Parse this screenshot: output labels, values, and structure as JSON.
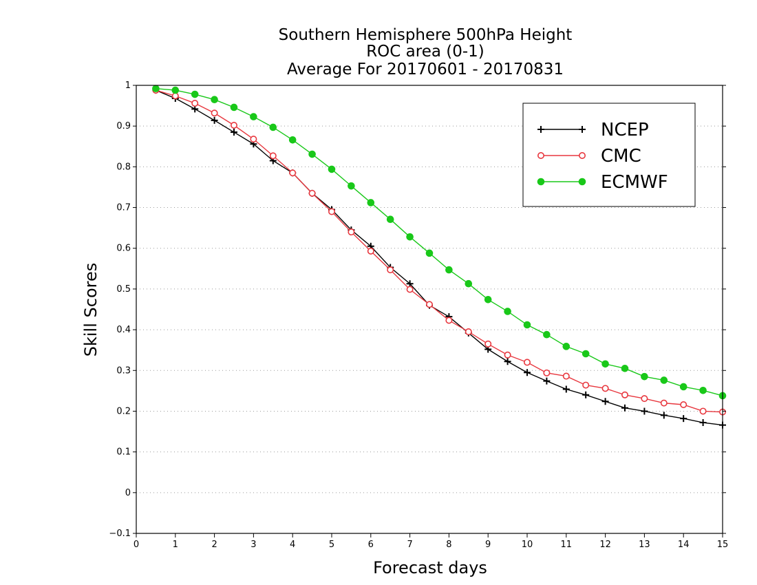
{
  "chart_data": {
    "type": "line",
    "title_lines": [
      "Southern Hemisphere 500hPa Height",
      "ROC area (0-1)",
      "Average For 20170601 - 20170831"
    ],
    "xlabel": "Forecast days",
    "ylabel": "Skill Scores",
    "xlim": [
      0,
      15
    ],
    "ylim": [
      -0.1,
      1
    ],
    "x_ticks": [
      "0",
      "1",
      "2",
      "3",
      "4",
      "5",
      "6",
      "7",
      "8",
      "9",
      "10",
      "11",
      "12",
      "13",
      "14",
      "15"
    ],
    "y_ticks": [
      "−0.1",
      "0",
      "0.1",
      "0.2",
      "0.3",
      "0.4",
      "0.5",
      "0.6",
      "0.7",
      "0.8",
      "0.9",
      "1"
    ],
    "y_tick_values": [
      -0.1,
      0,
      0.1,
      0.2,
      0.3,
      0.4,
      0.5,
      0.6,
      0.7,
      0.8,
      0.9,
      1
    ],
    "grid": "horizontal-dotted",
    "legend_position": "top-right",
    "x": [
      0.5,
      1,
      1.5,
      2,
      2.5,
      3,
      3.5,
      4,
      4.5,
      5,
      5.5,
      6,
      6.5,
      7,
      7.5,
      8,
      8.5,
      9,
      9.5,
      10,
      10.5,
      11,
      11.5,
      12,
      12.5,
      13,
      13.5,
      14,
      14.5,
      15
    ],
    "series": [
      {
        "name": "NCEP",
        "color": "#000000",
        "marker": "plus",
        "values": [
          0.988,
          0.968,
          0.942,
          0.914,
          0.885,
          0.856,
          0.815,
          0.785,
          0.735,
          0.695,
          0.645,
          0.605,
          0.553,
          0.513,
          0.46,
          0.432,
          0.392,
          0.352,
          0.322,
          0.295,
          0.274,
          0.254,
          0.24,
          0.224,
          0.208,
          0.2,
          0.19,
          0.182,
          0.172,
          0.166
        ]
      },
      {
        "name": "CMC",
        "color": "#e8373e",
        "marker": "open-circle",
        "values": [
          0.988,
          0.974,
          0.956,
          0.932,
          0.902,
          0.868,
          0.827,
          0.785,
          0.735,
          0.69,
          0.64,
          0.593,
          0.547,
          0.499,
          0.462,
          0.423,
          0.395,
          0.365,
          0.338,
          0.32,
          0.294,
          0.286,
          0.264,
          0.256,
          0.24,
          0.231,
          0.22,
          0.216,
          0.2,
          0.198
        ]
      },
      {
        "name": "ECMWF",
        "color": "#19c819",
        "marker": "filled-circle",
        "values": [
          0.992,
          0.988,
          0.978,
          0.965,
          0.946,
          0.923,
          0.897,
          0.866,
          0.831,
          0.794,
          0.753,
          0.712,
          0.671,
          0.628,
          0.588,
          0.547,
          0.513,
          0.474,
          0.445,
          0.412,
          0.388,
          0.359,
          0.341,
          0.316,
          0.305,
          0.285,
          0.276,
          0.26,
          0.251,
          0.238
        ]
      }
    ]
  }
}
